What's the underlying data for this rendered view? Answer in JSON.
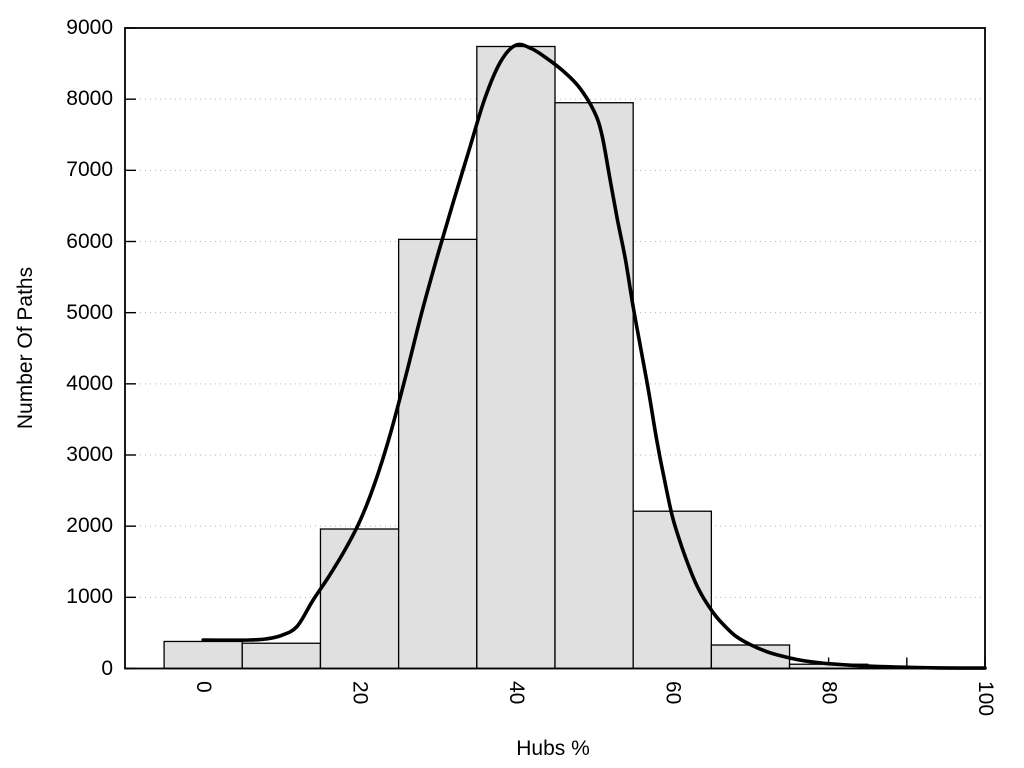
{
  "chart_data": {
    "type": "bar",
    "subtype": "histogram_with_density_curve",
    "title": "",
    "xlabel": "Hubs %",
    "ylabel": "Number Of Paths",
    "xlim": [
      -10,
      100
    ],
    "ylim": [
      0,
      9000
    ],
    "x_ticks_labeled": [
      0,
      20,
      40,
      60,
      80,
      100
    ],
    "x_ticks_minor": [
      10,
      30,
      50,
      70,
      90
    ],
    "y_ticks": [
      0,
      1000,
      2000,
      3000,
      4000,
      5000,
      6000,
      7000,
      8000,
      9000
    ],
    "grid": {
      "horizontal_dotted": true,
      "vertical": false,
      "color": "#b3b3b3"
    },
    "legend": "none",
    "bars": {
      "bin_width": 10,
      "centers": [
        0,
        10,
        20,
        30,
        40,
        50,
        60,
        70,
        80,
        90
      ],
      "values": [
        380,
        355,
        1960,
        6030,
        8740,
        7950,
        2210,
        330,
        60,
        20
      ],
      "fill": "#e0e0e0",
      "stroke": "#000000"
    },
    "curve": {
      "color": "#000000",
      "points": [
        [
          0,
          400
        ],
        [
          3,
          398
        ],
        [
          6,
          400
        ],
        [
          8,
          415
        ],
        [
          10,
          465
        ],
        [
          12,
          590
        ],
        [
          14,
          950
        ],
        [
          16,
          1280
        ],
        [
          18,
          1640
        ],
        [
          20,
          2060
        ],
        [
          22,
          2620
        ],
        [
          24,
          3320
        ],
        [
          26,
          4150
        ],
        [
          28,
          5020
        ],
        [
          30,
          5810
        ],
        [
          32,
          6560
        ],
        [
          34,
          7280
        ],
        [
          36,
          8000
        ],
        [
          38,
          8520
        ],
        [
          40,
          8760
        ],
        [
          42,
          8710
        ],
        [
          44,
          8570
        ],
        [
          46,
          8400
        ],
        [
          48,
          8180
        ],
        [
          50,
          7830
        ],
        [
          51,
          7500
        ],
        [
          52,
          6900
        ],
        [
          53,
          6300
        ],
        [
          54,
          5750
        ],
        [
          55,
          5080
        ],
        [
          56,
          4480
        ],
        [
          57,
          3880
        ],
        [
          58,
          3220
        ],
        [
          59,
          2650
        ],
        [
          60,
          2140
        ],
        [
          61,
          1780
        ],
        [
          62,
          1470
        ],
        [
          63,
          1200
        ],
        [
          64,
          990
        ],
        [
          65,
          820
        ],
        [
          66,
          680
        ],
        [
          68,
          465
        ],
        [
          70,
          335
        ],
        [
          72,
          240
        ],
        [
          74,
          175
        ],
        [
          76,
          125
        ],
        [
          78,
          92
        ],
        [
          80,
          68
        ],
        [
          83,
          45
        ],
        [
          86,
          30
        ],
        [
          90,
          17
        ],
        [
          94,
          9
        ],
        [
          100,
          5
        ]
      ]
    },
    "colors": {
      "background": "#ffffff",
      "text": "#000000",
      "axis": "#000000"
    }
  }
}
